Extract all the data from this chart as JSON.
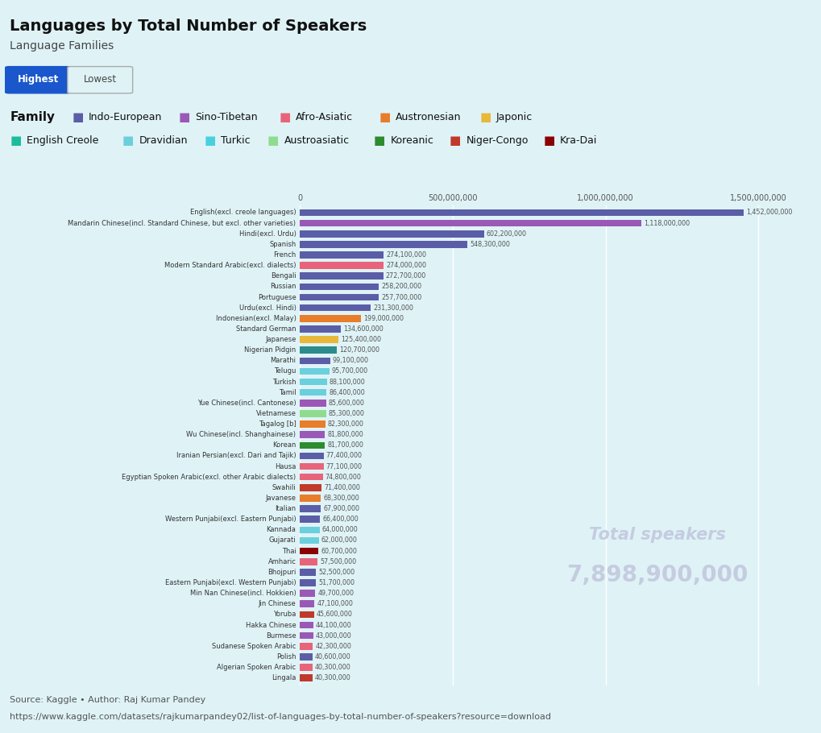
{
  "title": "Languages by Total Number of Speakers",
  "subtitle": "Language Families",
  "bg_color": "#dff3f7",
  "languages": [
    "English(excl. creole languages)",
    "Mandarin Chinese(incl. Standard Chinese, but excl. other varieties)",
    "Hindi(excl. Urdu)",
    "Spanish",
    "French",
    "Modern Standard Arabic(excl. dialects)",
    "Bengali",
    "Russian",
    "Portuguese",
    "Urdu(excl. Hindi)",
    "Indonesian(excl. Malay)",
    "Standard German",
    "Japanese",
    "Nigerian Pidgin",
    "Marathi",
    "Telugu",
    "Turkish",
    "Tamil",
    "Yue Chinese(incl. Cantonese)",
    "Vietnamese",
    "Tagalog [b]",
    "Wu Chinese(incl. Shanghainese)",
    "Korean",
    "Iranian Persian(excl. Dari and Tajik)",
    "Hausa",
    "Egyptian Spoken Arabic(excl. other Arabic dialects)",
    "Swahili",
    "Javanese",
    "Italian",
    "Western Punjabi(excl. Eastern Punjabi)",
    "Kannada",
    "Gujarati",
    "Thai",
    "Amharic",
    "Bhojpuri",
    "Eastern Punjabi(excl. Western Punjabi)",
    "Min Nan Chinese(incl. Hokkien)",
    "Jin Chinese",
    "Yoruba",
    "Hakka Chinese",
    "Burmese",
    "Sudanese Spoken Arabic",
    "Polish",
    "Algerian Spoken Arabic",
    "Lingala"
  ],
  "values": [
    1452000000,
    1118000000,
    602200000,
    548300000,
    274100000,
    274000000,
    272700000,
    258200000,
    257700000,
    231300000,
    199000000,
    134600000,
    125400000,
    120700000,
    99100000,
    95700000,
    88100000,
    86400000,
    85600000,
    85300000,
    82300000,
    81800000,
    81700000,
    77400000,
    77100000,
    74800000,
    71400000,
    68300000,
    67900000,
    66400000,
    64000000,
    62000000,
    60700000,
    57500000,
    52500000,
    51700000,
    49700000,
    47100000,
    45600000,
    44100000,
    43000000,
    42300000,
    40600000,
    40300000,
    40300000
  ],
  "colors": [
    "#5b5ea6",
    "#9b59b6",
    "#5b5ea6",
    "#5b5ea6",
    "#5b5ea6",
    "#e8647a",
    "#5b5ea6",
    "#5b5ea6",
    "#5b5ea6",
    "#5b5ea6",
    "#e87d2b",
    "#5b5ea6",
    "#e8b83a",
    "#2d8b8b",
    "#5b5ea6",
    "#6bcfdc",
    "#6bcfdc",
    "#6bcfdc",
    "#9b59b6",
    "#8fdc8f",
    "#e87d2b",
    "#9b59b6",
    "#2e8b2e",
    "#5b5ea6",
    "#e8647a",
    "#e8647a",
    "#c0392b",
    "#e87d2b",
    "#5b5ea6",
    "#5b5ea6",
    "#6bcfdc",
    "#6bcfdc",
    "#8b0000",
    "#e8647a",
    "#5b5ea6",
    "#5b5ea6",
    "#9b59b6",
    "#9b59b6",
    "#c0392b",
    "#9b59b6",
    "#9b59b6",
    "#e8647a",
    "#5b5ea6",
    "#e8647a",
    "#c0392b"
  ],
  "families": {
    "Indo-European": "#5b5ea6",
    "Sino-Tibetan": "#9b59b6",
    "Afro-Asiatic": "#e8647a",
    "Austronesian": "#e87d2b",
    "Japonic": "#e8b83a",
    "English Creole": "#1abc9c",
    "Dravidian": "#6bcfdc",
    "Turkic": "#48d1dd",
    "Austroasiatic": "#8fdc8f",
    "Koreanic": "#2e8b2e",
    "Niger-Congo": "#c0392b",
    "Kra-Dai": "#8b0000"
  },
  "total_speakers": "7,898,900,000",
  "xlabel_ticks": [
    0,
    500000000,
    1000000000,
    1500000000
  ],
  "xlabel_labels": [
    "0",
    "500,000,000",
    "1,000,000,000",
    "1,500,000,000"
  ],
  "source_text1": "Source: Kaggle • Author: Raj Kumar Pandey",
  "source_text2": "https://www.kaggle.com/datasets/rajkumarpandey02/list-of-languages-by-total-number-of-speakers?resource=download"
}
